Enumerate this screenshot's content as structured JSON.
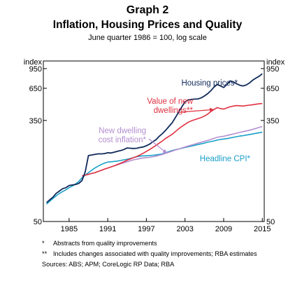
{
  "heading": {
    "graph_number": "Graph 2",
    "title": "Inflation, Housing Prices and Quality",
    "subtitle": "June quarter 1986 = 100, log scale"
  },
  "chart_data": {
    "type": "line",
    "title": "Inflation, Housing Prices and Quality",
    "subtitle": "June quarter 1986 = 100, log scale",
    "y_unit": "index",
    "y_scale": "log",
    "ylim": [
      50,
      1100
    ],
    "y_ticks": [
      50,
      350,
      650,
      950
    ],
    "xlim": [
      1981.0,
      2015.3
    ],
    "x_ticks": [
      1985,
      1991,
      1997,
      2003,
      2009,
      2015
    ],
    "grid": false,
    "series": [
      {
        "name": "Housing prices*",
        "color": "#10295a",
        "points": [
          [
            1981.5,
            72
          ],
          [
            1982,
            76
          ],
          [
            1982.5,
            80
          ],
          [
            1983,
            86
          ],
          [
            1983.5,
            90
          ],
          [
            1984,
            94
          ],
          [
            1984.5,
            96
          ],
          [
            1985,
            100
          ],
          [
            1985.5,
            101
          ],
          [
            1986,
            102
          ],
          [
            1986.5,
            104
          ],
          [
            1987,
            110
          ],
          [
            1987.5,
            130
          ],
          [
            1988,
            178
          ],
          [
            1988.5,
            180
          ],
          [
            1989,
            182
          ],
          [
            1989.5,
            184
          ],
          [
            1990,
            184
          ],
          [
            1990.5,
            185
          ],
          [
            1991,
            188
          ],
          [
            1991.5,
            187
          ],
          [
            1992,
            190
          ],
          [
            1992.5,
            193
          ],
          [
            1993,
            196
          ],
          [
            1993.5,
            200
          ],
          [
            1994,
            206
          ],
          [
            1994.5,
            205
          ],
          [
            1995,
            204
          ],
          [
            1995.5,
            205
          ],
          [
            1996,
            208
          ],
          [
            1996.5,
            210
          ],
          [
            1997,
            215
          ],
          [
            1997.5,
            222
          ],
          [
            1998,
            232
          ],
          [
            1998.5,
            242
          ],
          [
            1999,
            258
          ],
          [
            1999.5,
            272
          ],
          [
            2000,
            290
          ],
          [
            2000.5,
            312
          ],
          [
            2001,
            335
          ],
          [
            2001.5,
            370
          ],
          [
            2002,
            410
          ],
          [
            2002.5,
            455
          ],
          [
            2003,
            500
          ],
          [
            2003.5,
            520
          ],
          [
            2004,
            525
          ],
          [
            2004.5,
            528
          ],
          [
            2005,
            530
          ],
          [
            2005.5,
            540
          ],
          [
            2006,
            560
          ],
          [
            2006.5,
            585
          ],
          [
            2007,
            620
          ],
          [
            2007.5,
            665
          ],
          [
            2008,
            700
          ],
          [
            2008.5,
            680
          ],
          [
            2009,
            660
          ],
          [
            2009.5,
            700
          ],
          [
            2010,
            750
          ],
          [
            2010.5,
            735
          ],
          [
            2011,
            710
          ],
          [
            2011.5,
            690
          ],
          [
            2012,
            680
          ],
          [
            2012.5,
            692
          ],
          [
            2013,
            720
          ],
          [
            2013.5,
            760
          ],
          [
            2014,
            790
          ],
          [
            2014.5,
            820
          ],
          [
            2015,
            860
          ]
        ]
      },
      {
        "name": "Value of new dwellings**",
        "color": "#e03040",
        "points": [
          [
            1987,
            120
          ],
          [
            1987.5,
            122
          ],
          [
            1988,
            124
          ],
          [
            1988.5,
            126
          ],
          [
            1989,
            128
          ],
          [
            1989.5,
            131
          ],
          [
            1990,
            134
          ],
          [
            1990.5,
            137
          ],
          [
            1991,
            140
          ],
          [
            1991.5,
            143
          ],
          [
            1992,
            146
          ],
          [
            1992.5,
            150
          ],
          [
            1993,
            154
          ],
          [
            1993.5,
            158
          ],
          [
            1994,
            163
          ],
          [
            1994.5,
            167
          ],
          [
            1995,
            171
          ],
          [
            1995.5,
            175
          ],
          [
            1996,
            180
          ],
          [
            1996.5,
            186
          ],
          [
            1997,
            193
          ],
          [
            1997.5,
            200
          ],
          [
            1998,
            208
          ],
          [
            1998.5,
            217
          ],
          [
            1999,
            226
          ],
          [
            1999.5,
            236
          ],
          [
            2000,
            248
          ],
          [
            2000.5,
            258
          ],
          [
            2001,
            268
          ],
          [
            2001.5,
            282
          ],
          [
            2002,
            298
          ],
          [
            2002.5,
            312
          ],
          [
            2003,
            325
          ],
          [
            2003.5,
            338
          ],
          [
            2004,
            348
          ],
          [
            2004.5,
            355
          ],
          [
            2005,
            362
          ],
          [
            2005.5,
            370
          ],
          [
            2006,
            380
          ],
          [
            2006.5,
            395
          ],
          [
            2007,
            415
          ],
          [
            2007.5,
            432
          ],
          [
            2008,
            448
          ],
          [
            2008.5,
            440
          ],
          [
            2009,
            436
          ],
          [
            2009.5,
            446
          ],
          [
            2010,
            455
          ],
          [
            2010.5,
            462
          ],
          [
            2011,
            466
          ],
          [
            2011.5,
            464
          ],
          [
            2012,
            462
          ],
          [
            2012.5,
            466
          ],
          [
            2013,
            470
          ],
          [
            2013.5,
            474
          ],
          [
            2014,
            478
          ],
          [
            2014.5,
            482
          ],
          [
            2015,
            485
          ]
        ]
      },
      {
        "name": "New dwelling cost inflation*",
        "color": "#b48ed0",
        "points": [
          [
            1987,
            120
          ],
          [
            1987.5,
            122
          ],
          [
            1988,
            124
          ],
          [
            1988.5,
            126
          ],
          [
            1989,
            128
          ],
          [
            1989.5,
            131
          ],
          [
            1990,
            134
          ],
          [
            1990.5,
            137
          ],
          [
            1991,
            140
          ],
          [
            1991.5,
            143
          ],
          [
            1992,
            146
          ],
          [
            1992.5,
            149
          ],
          [
            1993,
            152
          ],
          [
            1993.5,
            155
          ],
          [
            1994,
            158
          ],
          [
            1994.5,
            161
          ],
          [
            1995,
            164
          ],
          [
            1995.5,
            166
          ],
          [
            1996,
            168
          ],
          [
            1996.5,
            170
          ],
          [
            1997,
            171
          ],
          [
            1997.5,
            172
          ],
          [
            1998,
            174
          ],
          [
            1998.5,
            176
          ],
          [
            1999,
            179
          ],
          [
            1999.5,
            182
          ],
          [
            2000,
            186
          ],
          [
            2000.5,
            190
          ],
          [
            2001,
            194
          ],
          [
            2001.5,
            198
          ],
          [
            2002,
            202
          ],
          [
            2002.5,
            206
          ],
          [
            2003,
            210
          ],
          [
            2003.5,
            214
          ],
          [
            2004,
            218
          ],
          [
            2004.5,
            222
          ],
          [
            2005,
            226
          ],
          [
            2005.5,
            230
          ],
          [
            2006,
            234
          ],
          [
            2006.5,
            238
          ],
          [
            2007,
            243
          ],
          [
            2007.5,
            248
          ],
          [
            2008,
            253
          ],
          [
            2008.5,
            256
          ],
          [
            2009,
            258
          ],
          [
            2009.5,
            262
          ],
          [
            2010,
            266
          ],
          [
            2010.5,
            270
          ],
          [
            2011,
            274
          ],
          [
            2011.5,
            278
          ],
          [
            2012,
            282
          ],
          [
            2012.5,
            286
          ],
          [
            2013,
            290
          ],
          [
            2013.5,
            295
          ],
          [
            2014,
            300
          ],
          [
            2014.5,
            306
          ],
          [
            2015,
            312
          ]
        ]
      },
      {
        "name": "Headline CPI*",
        "color": "#1aa0c8",
        "points": [
          [
            1981.5,
            70
          ],
          [
            1982,
            74
          ],
          [
            1982.5,
            78
          ],
          [
            1983,
            82
          ],
          [
            1983.5,
            86
          ],
          [
            1984,
            89
          ],
          [
            1984.5,
            92
          ],
          [
            1985,
            96
          ],
          [
            1985.5,
            99
          ],
          [
            1986,
            103
          ],
          [
            1986.5,
            108
          ],
          [
            1987,
            116
          ],
          [
            1987.5,
            122
          ],
          [
            1988,
            128
          ],
          [
            1988.5,
            134
          ],
          [
            1989,
            140
          ],
          [
            1989.5,
            145
          ],
          [
            1990,
            150
          ],
          [
            1990.5,
            154
          ],
          [
            1991,
            157
          ],
          [
            1991.5,
            158
          ],
          [
            1992,
            159
          ],
          [
            1992.5,
            160
          ],
          [
            1993,
            162
          ],
          [
            1993.5,
            164
          ],
          [
            1994,
            166
          ],
          [
            1994.5,
            168
          ],
          [
            1995,
            171
          ],
          [
            1995.5,
            174
          ],
          [
            1996,
            176
          ],
          [
            1996.5,
            177
          ],
          [
            1997,
            177
          ],
          [
            1997.5,
            178
          ],
          [
            1998,
            179
          ],
          [
            1998.5,
            180
          ],
          [
            1999,
            182
          ],
          [
            1999.5,
            184
          ],
          [
            2000,
            188
          ],
          [
            2000.5,
            192
          ],
          [
            2001,
            196
          ],
          [
            2001.5,
            199
          ],
          [
            2002,
            202
          ],
          [
            2002.5,
            205
          ],
          [
            2003,
            208
          ],
          [
            2003.5,
            211
          ],
          [
            2004,
            214
          ],
          [
            2004.5,
            217
          ],
          [
            2005,
            220
          ],
          [
            2005.5,
            223
          ],
          [
            2006,
            226
          ],
          [
            2006.5,
            230
          ],
          [
            2007,
            233
          ],
          [
            2007.5,
            236
          ],
          [
            2008,
            240
          ],
          [
            2008.5,
            243
          ],
          [
            2009,
            245
          ],
          [
            2009.5,
            247
          ],
          [
            2010,
            250
          ],
          [
            2010.5,
            253
          ],
          [
            2011,
            256
          ],
          [
            2011.5,
            259
          ],
          [
            2012,
            261
          ],
          [
            2012.5,
            264
          ],
          [
            2013,
            267
          ],
          [
            2013.5,
            270
          ],
          [
            2014,
            273
          ],
          [
            2014.5,
            276
          ],
          [
            2015,
            279
          ]
        ]
      }
    ],
    "annotations": [
      {
        "series": 0,
        "lines": [
          "Housing prices*"
        ],
        "color": "#10295a",
        "arrow": false
      },
      {
        "series": 1,
        "lines": [
          "Value of new",
          "dwellings**"
        ],
        "color": "#e03040",
        "arrow": true,
        "arrow_to": [
          2007.5,
          432
        ]
      },
      {
        "series": 2,
        "lines": [
          "New dwelling",
          "cost inflation*"
        ],
        "color": "#b48ed0",
        "arrow": true,
        "arrow_to": [
          2000.2,
          186
        ]
      },
      {
        "series": 3,
        "lines": [
          "Headline CPI*"
        ],
        "color": "#1aa0c8",
        "arrow": false
      }
    ]
  },
  "notes": {
    "items": [
      {
        "mark": "*",
        "text": "Abstracts from quality improvements"
      },
      {
        "mark": "**",
        "text": "Includes changes associated with quality improvements; RBA estimates"
      }
    ],
    "sources": "Sources:   ABS; APM; CoreLogic RP Data; RBA"
  }
}
